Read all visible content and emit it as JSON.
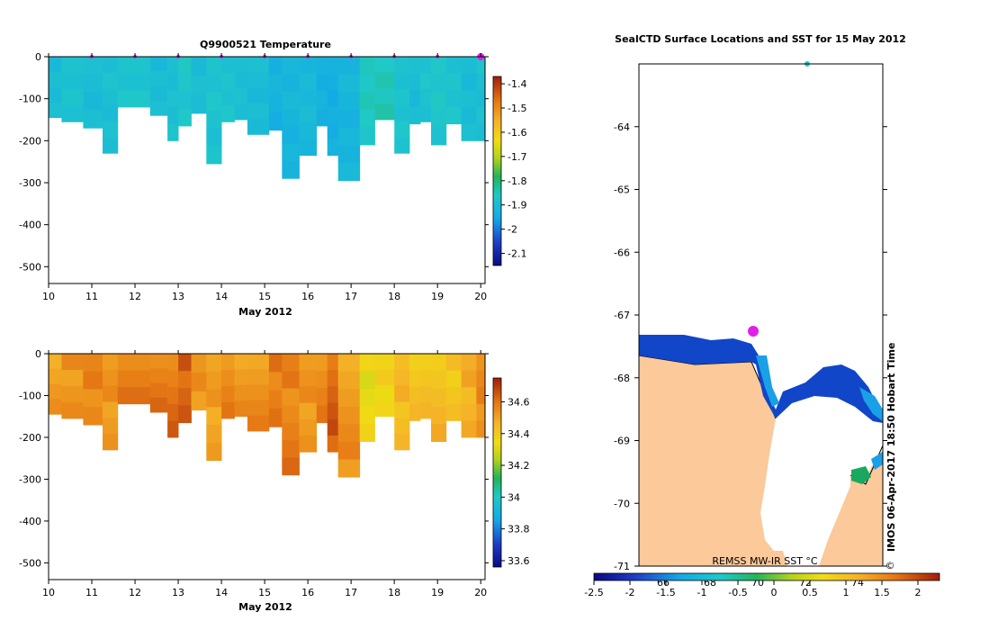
{
  "chart_data": [
    {
      "type": "heatmap",
      "title": "Q9900521  Temperature",
      "xlabel": "May 2012",
      "ylabel": "",
      "xlim": [
        10,
        20.1
      ],
      "ylim": [
        -540,
        0
      ],
      "x_ticks": [
        "10",
        "11",
        "12",
        "13",
        "14",
        "15",
        "16",
        "17",
        "18",
        "19",
        "20"
      ],
      "y_ticks": [
        "0",
        "-100",
        "-200",
        "-300",
        "-400",
        "-500"
      ],
      "colorbar": {
        "min": -2.15,
        "max": -1.37,
        "ticks": [
          "-1.4",
          "-1.5",
          "-1.6",
          "-1.7",
          "-1.8",
          "-1.9",
          "-2",
          "-2.1"
        ]
      },
      "profile_days": [
        10.0,
        10.3,
        10.8,
        11.25,
        11.6,
        12.35,
        12.75,
        13.0,
        13.3,
        13.65,
        14.0,
        14.3,
        14.6,
        15.1,
        15.4,
        15.8,
        16.2,
        16.45,
        16.7,
        17.2,
        17.55,
        18.0,
        18.35,
        18.6,
        18.85,
        19.2,
        19.55,
        19.9
      ],
      "profile_depths": [
        145,
        155,
        170,
        230,
        120,
        140,
        200,
        165,
        135,
        255,
        155,
        150,
        185,
        175,
        290,
        235,
        165,
        235,
        295,
        210,
        150,
        230,
        160,
        155,
        210,
        160,
        200,
        200
      ],
      "surface_values": [
        -1.9,
        -1.88,
        -1.9,
        -1.89,
        -1.88,
        -1.9,
        -1.89,
        -1.87,
        -1.9,
        -1.88,
        -1.88,
        -1.89,
        -1.9,
        -1.93,
        -1.92,
        -1.91,
        -1.93,
        -1.94,
        -1.92,
        -1.86,
        -1.85,
        -1.88,
        -1.9,
        -1.88,
        -1.87,
        -1.88,
        -1.9,
        -1.89
      ],
      "surface_markers": [
        11,
        12,
        13,
        14,
        15,
        16,
        17,
        18,
        19,
        20
      ]
    },
    {
      "type": "heatmap",
      "title": "",
      "xlabel": "May 2012",
      "ylabel": "",
      "xlim": [
        10,
        20.1
      ],
      "ylim": [
        -540,
        0
      ],
      "x_ticks": [
        "10",
        "11",
        "12",
        "13",
        "14",
        "15",
        "16",
        "17",
        "18",
        "19",
        "20"
      ],
      "y_ticks": [
        "0",
        "-100",
        "-200",
        "-300",
        "-400",
        "-500"
      ],
      "colorbar": {
        "min": 33.56,
        "max": 34.75,
        "ticks": [
          "34.6",
          "34.4",
          "34.2",
          "34",
          "33.8",
          "33.6"
        ]
      },
      "surface_values": [
        34.5,
        34.52,
        34.54,
        34.5,
        34.55,
        34.56,
        34.58,
        34.62,
        34.5,
        34.48,
        34.52,
        34.5,
        34.52,
        34.57,
        34.55,
        34.5,
        34.52,
        34.6,
        34.5,
        34.32,
        34.34,
        34.42,
        34.38,
        34.4,
        34.42,
        34.4,
        34.45,
        34.52
      ]
    },
    {
      "type": "map",
      "title": "SealCTD Surface Locations and SST for 15 May 2012",
      "ylabel": "",
      "y_ticks": [
        "-64",
        "-65",
        "-66",
        "-67",
        "-68",
        "-69",
        "-70",
        "-71"
      ],
      "ylim": [
        -71,
        -63
      ],
      "colorbar": {
        "label": "REMSS MW-IR SST °C",
        "min": -2.5,
        "max": 2.3,
        "ticks": [
          "-2.5",
          "-2",
          "-1.5",
          "-1",
          "-0.5",
          "0",
          "0.5",
          "1",
          "1.5",
          "2"
        ],
        "overlay_labels": [
          "66",
          "68",
          "70",
          "72",
          "74"
        ]
      },
      "side_label": "IMOS 06-Apr-2017 18:50 Hobart Time",
      "copyright": "©"
    }
  ]
}
